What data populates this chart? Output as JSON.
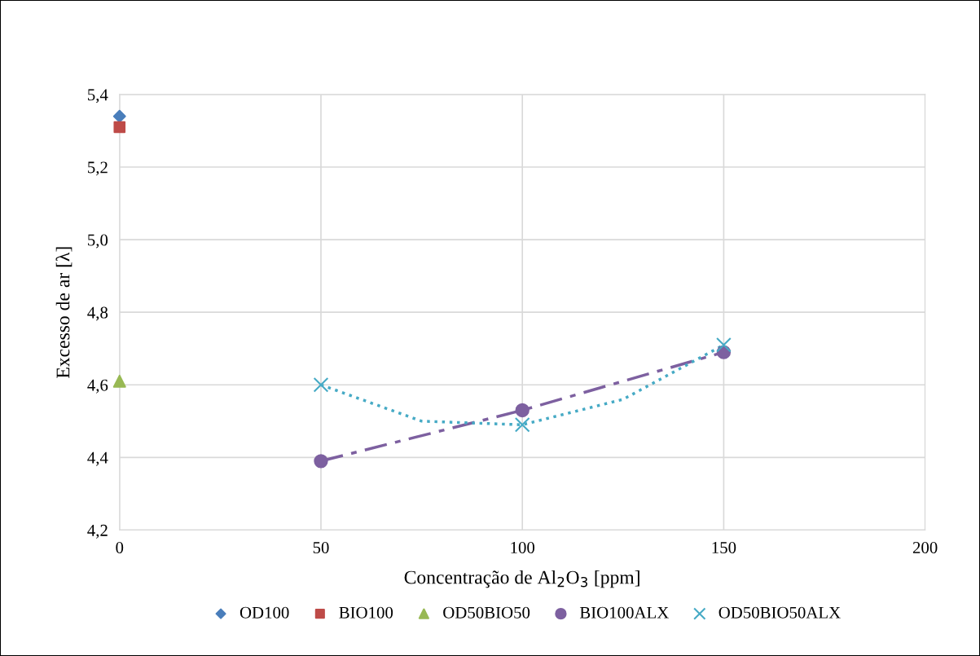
{
  "chart_data": {
    "type": "scatter",
    "xlabel": "Concentração de Al$_{2}$O$_{3}$ [ppm]",
    "ylabel": "Excesso de ar [λ]",
    "xlim": [
      0,
      200
    ],
    "xticks": [
      0,
      50,
      100,
      150,
      200
    ],
    "ylim": [
      4.2,
      5.4
    ],
    "yticks": [
      {
        "value": 4.2,
        "label": "4,2"
      },
      {
        "value": 4.4,
        "label": "4,4"
      },
      {
        "value": 4.6,
        "label": "4,6"
      },
      {
        "value": 4.8,
        "label": "4,8"
      },
      {
        "value": 5.0,
        "label": "5,0"
      },
      {
        "value": 5.2,
        "label": "5,2"
      },
      {
        "value": 5.4,
        "label": "5,4"
      }
    ],
    "grid": true,
    "legend": "bottom",
    "series": [
      {
        "name": "OD100",
        "color": "#4a7ebb",
        "marker": "diamond",
        "x": [
          0
        ],
        "values": [
          5.34
        ]
      },
      {
        "name": "BIO100",
        "color": "#be4b48",
        "marker": "square",
        "x": [
          0
        ],
        "values": [
          5.31
        ]
      },
      {
        "name": "OD50BIO50",
        "color": "#98b954",
        "marker": "triangle",
        "x": [
          0
        ],
        "values": [
          4.61
        ]
      },
      {
        "name": "BIO100ALX",
        "color": "#7d60a0",
        "marker": "circle",
        "x": [
          50,
          100,
          150
        ],
        "values": [
          4.39,
          4.53,
          4.69
        ]
      },
      {
        "name": "OD50BIO50ALX",
        "color": "#46aac5",
        "marker": "cross",
        "x": [
          50,
          100,
          150
        ],
        "values": [
          4.6,
          4.49,
          4.71
        ]
      },
      {
        "type": "line",
        "color": "#7d60a0",
        "marker": "none",
        "line_style": "dashdot",
        "x": [
          50,
          75,
          100,
          125,
          150
        ],
        "values": [
          4.39,
          4.46,
          4.53,
          4.61,
          4.69
        ]
      },
      {
        "type": "line",
        "color": "#46aac5",
        "marker": "none",
        "line_style": "dotted",
        "x": [
          50,
          75,
          100,
          125,
          150
        ],
        "values": [
          4.6,
          4.5,
          4.49,
          4.56,
          4.71
        ]
      }
    ]
  }
}
